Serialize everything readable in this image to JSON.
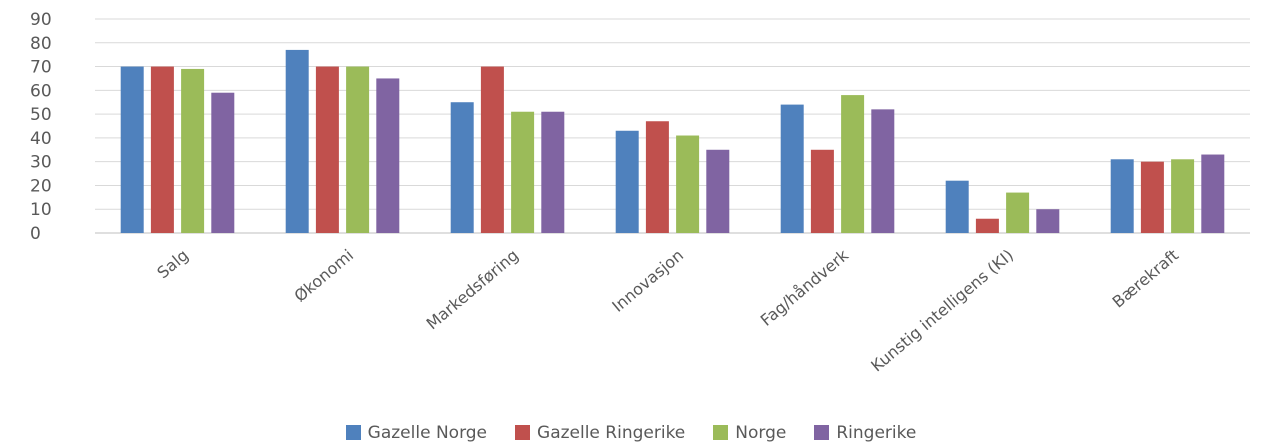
{
  "chart_data": {
    "type": "bar",
    "title": "",
    "xlabel": "",
    "ylabel": "",
    "ylim": [
      0,
      90
    ],
    "yticks": [
      0,
      10,
      20,
      30,
      40,
      50,
      60,
      70,
      80,
      90
    ],
    "grid": true,
    "legend_position": "bottom",
    "categories": [
      "Salg",
      "Økonomi",
      "Markedsføring",
      "Innovasjon",
      "Fag/håndverk",
      "Kunstig intelligens (KI)",
      "Bærekraft"
    ],
    "series": [
      {
        "name": "Gazelle Norge",
        "color": "#4f81bd",
        "values": [
          70,
          77,
          55,
          43,
          54,
          22,
          31
        ]
      },
      {
        "name": "Gazelle Ringerike",
        "color": "#c0504d",
        "values": [
          70,
          70,
          70,
          47,
          35,
          6,
          30
        ]
      },
      {
        "name": "Norge",
        "color": "#9bbb59",
        "values": [
          69,
          70,
          51,
          41,
          58,
          17,
          31
        ]
      },
      {
        "name": "Ringerike",
        "color": "#8064a2",
        "values": [
          59,
          65,
          51,
          35,
          52,
          10,
          33
        ]
      }
    ]
  }
}
